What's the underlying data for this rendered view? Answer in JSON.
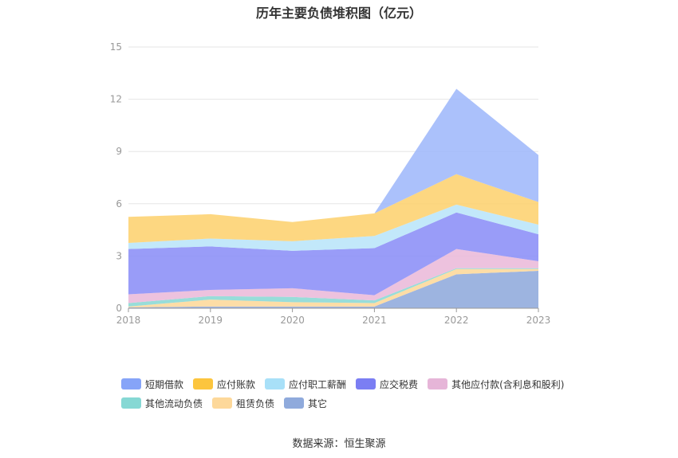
{
  "chart_data": {
    "type": "area",
    "stacked": true,
    "title": "历年主要负债堆积图（亿元）",
    "categories": [
      "2018",
      "2019",
      "2020",
      "2021",
      "2022",
      "2023"
    ],
    "ylim": [
      0,
      15
    ],
    "yticks": [
      "0",
      "3",
      "6",
      "9",
      "12",
      "15"
    ],
    "grid": true,
    "legend_position": "bottom",
    "series": [
      {
        "name": "其它",
        "color": "#8faadc",
        "values": [
          0.05,
          0.1,
          0.1,
          0.1,
          1.95,
          2.15
        ]
      },
      {
        "name": "租赁负债",
        "color": "#fdd89a",
        "values": [
          0.05,
          0.4,
          0.25,
          0.2,
          0.3,
          0.1
        ]
      },
      {
        "name": "其他流动负债",
        "color": "#8ad8d4",
        "values": [
          0.2,
          0.2,
          0.3,
          0.15,
          0.05,
          0.05
        ]
      },
      {
        "name": "其他应付款(含利息和股利)",
        "color": "#ebbad9",
        "values": [
          0.5,
          0.35,
          0.5,
          0.3,
          1.1,
          0.4
        ]
      },
      {
        "name": "应交税费",
        "color": "#8b8ef7",
        "values": [
          2.6,
          2.5,
          2.15,
          2.7,
          2.1,
          1.55
        ]
      },
      {
        "name": "应付职工薪酬",
        "color": "#b9e5f9",
        "values": [
          0.35,
          0.45,
          0.55,
          0.7,
          0.45,
          0.55
        ]
      },
      {
        "name": "应付账款",
        "color": "#fdd26f",
        "values": [
          1.5,
          1.4,
          1.1,
          1.3,
          1.75,
          1.3
        ]
      },
      {
        "name": "短期借款",
        "color": "#9fb8fb",
        "values": [
          0,
          0,
          0,
          0,
          4.9,
          2.7
        ]
      }
    ],
    "legend_order": [
      "短期借款",
      "应付账款",
      "应付职工薪酬",
      "应交税费",
      "其他应付款(含利息和股利)",
      "其他流动负债",
      "租赁负债",
      "其它"
    ],
    "legend_colors": {
      "短期借款": "#86a4f8",
      "应付账款": "#fcc53e",
      "应付职工薪酬": "#a8e0f8",
      "应交税费": "#7b7ef3",
      "其他应付款(含利息和股利)": "#e6b5d8",
      "其他流动负债": "#86d8d4",
      "租赁负债": "#fdd89a",
      "其它": "#8faadc"
    }
  },
  "source": "数据来源：恒生聚源"
}
